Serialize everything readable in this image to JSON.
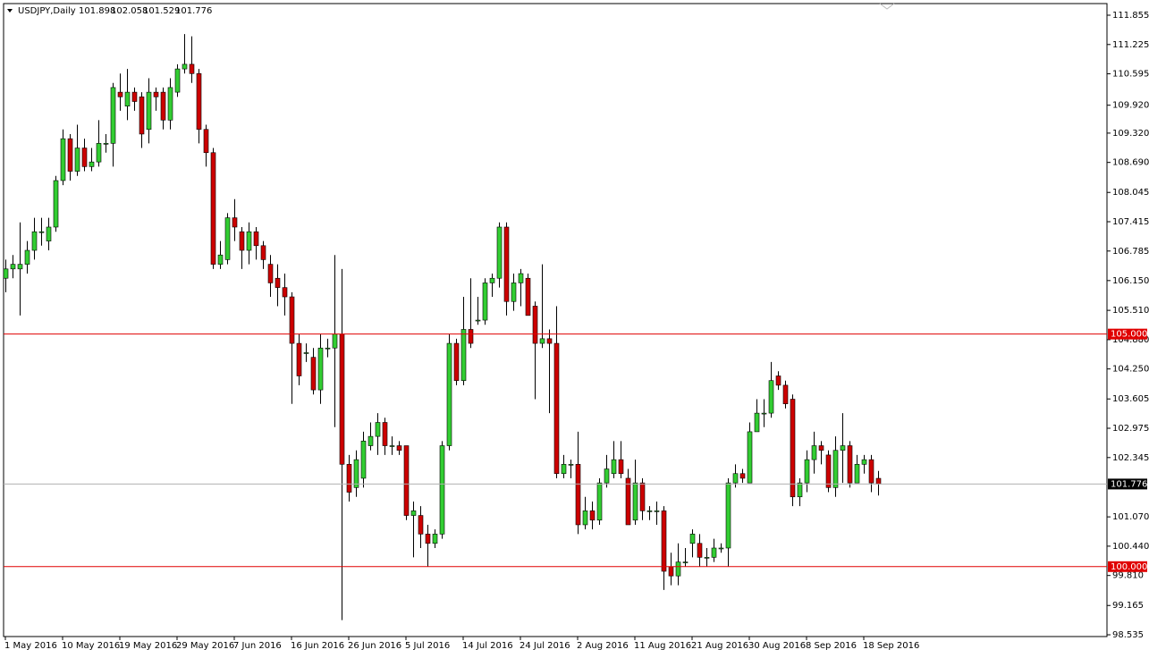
{
  "chart_data": {
    "type": "candlestick",
    "header": {
      "symbol": "USDJPY,Daily",
      "ohlc": [
        101.898,
        102.058,
        101.529,
        101.776
      ]
    },
    "categories": [
      "1 May 2016",
      null,
      null,
      null,
      null,
      null,
      null,
      null,
      "10 May 2016",
      null,
      null,
      null,
      null,
      null,
      null,
      null,
      "19 May 2016",
      null,
      null,
      null,
      null,
      null,
      null,
      null,
      "29 May 2016",
      null,
      null,
      null,
      null,
      null,
      null,
      null,
      "7 Jun 2016",
      null,
      null,
      null,
      null,
      null,
      null,
      null,
      "16 Jun 2016",
      null,
      null,
      null,
      null,
      null,
      null,
      null,
      "26 Jun 2016",
      null,
      null,
      null,
      null,
      null,
      null,
      null,
      "5 Jul 2016",
      null,
      null,
      null,
      null,
      null,
      null,
      null,
      "14 Jul 2016",
      null,
      null,
      null,
      null,
      null,
      null,
      null,
      "24 Jul 2016",
      null,
      null,
      null,
      null,
      null,
      null,
      null,
      "2 Aug 2016",
      null,
      null,
      null,
      null,
      null,
      null,
      null,
      "11 Aug 2016",
      null,
      null,
      null,
      null,
      null,
      null,
      null,
      "21 Aug 2016",
      null,
      null,
      null,
      null,
      null,
      null,
      null,
      "30 Aug 2016",
      null,
      null,
      null,
      null,
      null,
      null,
      null,
      "8 Sep 2016",
      null,
      null,
      null,
      null,
      null,
      null,
      null,
      "18 Sep 2016",
      null,
      null
    ],
    "open": [
      106.2,
      106.4,
      106.4,
      106.5,
      106.8,
      107.2,
      107.0,
      107.3,
      108.3,
      109.2,
      108.5,
      109.0,
      108.6,
      108.7,
      109.1,
      109.1,
      110.2,
      109.9,
      110.2,
      110.1,
      109.4,
      110.2,
      110.2,
      109.6,
      110.2,
      110.7,
      110.8,
      110.6,
      109.4,
      108.9,
      106.5,
      106.6,
      107.5,
      107.2,
      106.8,
      107.2,
      106.9,
      106.5,
      106.2,
      106.0,
      105.8,
      104.8,
      104.6,
      104.5,
      103.8,
      104.7,
      104.7,
      105.0,
      102.2,
      101.7,
      101.9,
      102.6,
      102.8,
      103.1,
      102.6,
      102.6,
      102.6,
      101.1,
      101.1,
      100.7,
      100.5,
      100.7,
      102.6,
      104.8,
      104.0,
      105.1,
      105.3,
      105.3,
      106.1,
      106.2,
      107.3,
      105.7,
      106.1,
      106.2,
      105.6,
      104.8,
      104.9,
      104.8,
      102.0,
      102.2,
      102.2,
      100.9,
      101.2,
      101.0,
      101.8,
      102.0,
      102.3,
      101.9,
      101.0,
      101.8,
      101.2,
      101.2,
      101.2,
      100.0,
      99.8,
      100.1,
      100.5,
      100.5,
      100.2,
      100.2,
      100.4,
      100.4,
      101.8,
      102.0,
      101.8,
      102.9,
      103.3,
      103.3,
      104.1,
      103.9,
      103.6,
      101.5,
      101.8,
      102.3,
      102.6,
      102.4,
      101.7,
      102.5,
      102.6,
      101.8,
      102.2,
      102.3,
      101.898
    ],
    "high": [
      106.6,
      106.7,
      107.4,
      107.0,
      107.5,
      107.5,
      107.5,
      108.4,
      109.4,
      109.3,
      109.5,
      109.2,
      109.0,
      109.6,
      109.3,
      110.4,
      110.6,
      110.7,
      110.3,
      110.2,
      110.5,
      110.3,
      110.3,
      110.5,
      110.8,
      111.45,
      111.4,
      110.7,
      109.5,
      109.0,
      107.0,
      107.6,
      107.9,
      107.3,
      107.4,
      107.3,
      107.0,
      106.7,
      106.5,
      106.3,
      105.9,
      105.0,
      104.8,
      104.7,
      105.0,
      104.9,
      106.7,
      106.4,
      102.4,
      102.5,
      102.9,
      103.1,
      103.3,
      103.2,
      102.8,
      102.7,
      102.6,
      101.4,
      101.3,
      100.9,
      100.8,
      102.7,
      105.0,
      104.9,
      105.8,
      106.2,
      105.8,
      106.2,
      106.3,
      107.4,
      107.4,
      106.3,
      106.4,
      106.3,
      105.7,
      106.5,
      105.1,
      105.6,
      102.4,
      102.3,
      102.9,
      101.5,
      101.4,
      101.9,
      102.4,
      102.7,
      102.7,
      102.1,
      102.3,
      101.9,
      101.3,
      101.4,
      101.3,
      100.3,
      100.5,
      100.4,
      100.8,
      100.7,
      100.4,
      100.6,
      100.5,
      101.9,
      102.2,
      102.1,
      103.1,
      103.6,
      103.6,
      104.4,
      104.2,
      104.0,
      103.7,
      101.9,
      102.5,
      102.9,
      102.7,
      102.5,
      102.8,
      103.3,
      102.7,
      102.4,
      102.4,
      102.4,
      102.058
    ],
    "low": [
      105.9,
      106.2,
      105.4,
      106.3,
      106.6,
      106.9,
      106.8,
      107.2,
      108.2,
      108.3,
      108.4,
      108.5,
      108.5,
      108.6,
      108.9,
      108.6,
      109.8,
      109.6,
      109.8,
      109.0,
      109.1,
      109.8,
      109.4,
      109.4,
      110.1,
      110.6,
      110.4,
      109.1,
      108.6,
      106.4,
      106.4,
      106.5,
      107.0,
      106.4,
      106.5,
      106.6,
      106.4,
      105.8,
      105.6,
      105.4,
      103.5,
      103.9,
      104.4,
      103.7,
      103.5,
      104.5,
      103.0,
      98.85,
      101.4,
      101.5,
      101.7,
      102.5,
      102.4,
      102.4,
      102.4,
      102.4,
      101.0,
      100.2,
      100.4,
      100.0,
      100.4,
      100.6,
      102.5,
      103.9,
      103.9,
      104.7,
      105.2,
      105.2,
      105.8,
      106.0,
      105.4,
      105.5,
      105.6,
      105.4,
      103.6,
      104.7,
      103.3,
      101.9,
      101.9,
      101.9,
      100.7,
      100.8,
      100.8,
      100.9,
      101.7,
      101.9,
      101.9,
      100.9,
      100.9,
      101.0,
      101.0,
      100.9,
      99.5,
      99.6,
      99.6,
      100.0,
      100.2,
      100.0,
      100.0,
      100.1,
      100.3,
      100.0,
      101.7,
      101.8,
      101.8,
      102.9,
      103.0,
      103.2,
      103.8,
      103.4,
      101.3,
      101.3,
      101.6,
      102.0,
      102.2,
      101.6,
      101.5,
      101.8,
      101.7,
      101.8,
      102.0,
      101.6,
      101.529
    ],
    "close": [
      106.4,
      106.5,
      106.5,
      106.8,
      107.2,
      107.2,
      107.3,
      108.3,
      109.2,
      108.5,
      109.0,
      108.6,
      108.7,
      109.1,
      109.1,
      110.3,
      110.1,
      110.2,
      110.0,
      109.3,
      110.2,
      110.1,
      109.6,
      110.3,
      110.7,
      110.8,
      110.6,
      109.4,
      108.9,
      106.5,
      106.7,
      107.5,
      107.3,
      106.8,
      107.2,
      106.9,
      106.6,
      106.1,
      106.0,
      105.8,
      104.8,
      104.1,
      104.6,
      103.8,
      104.7,
      104.7,
      105.0,
      102.2,
      101.6,
      102.3,
      102.7,
      102.8,
      103.1,
      102.6,
      102.6,
      102.5,
      101.1,
      101.2,
      100.7,
      100.5,
      100.7,
      102.6,
      104.8,
      104.0,
      105.1,
      104.8,
      105.3,
      106.1,
      106.2,
      107.3,
      105.7,
      106.1,
      106.3,
      105.4,
      104.8,
      104.9,
      104.8,
      102.0,
      102.2,
      102.2,
      100.9,
      101.2,
      101.0,
      101.8,
      102.1,
      102.3,
      102.0,
      100.9,
      101.8,
      101.2,
      101.2,
      101.2,
      99.9,
      99.8,
      100.1,
      100.1,
      100.7,
      100.2,
      100.2,
      100.4,
      100.4,
      101.8,
      102.0,
      101.9,
      102.9,
      103.3,
      103.3,
      104.0,
      103.9,
      103.5,
      101.5,
      101.8,
      102.3,
      102.6,
      102.5,
      101.7,
      102.5,
      102.6,
      101.8,
      102.2,
      102.3,
      101.8,
      101.776
    ],
    "up_color": "#32cd32",
    "down_color": "#cc0000",
    "ylim": [
      98.497,
      112.105
    ],
    "yticks": [
      111.855,
      111.225,
      110.595,
      {
        "value": 109.92,
        "label": "109.920"
      },
      {
        "value": 109.32,
        "label": "109.320"
      },
      {
        "value": 108.69,
        "label": "108.690"
      },
      108.045,
      107.415,
      106.785,
      {
        "value": 106.15,
        "label": "106.150"
      },
      {
        "value": 105.51,
        "label": "105.510"
      },
      {
        "value": 104.88,
        "label": "104.880"
      },
      {
        "value": 104.25,
        "label": "104.250"
      },
      103.605,
      102.975,
      102.345,
      {
        "value": 101.07,
        "label": "101.070"
      },
      {
        "value": 100.44,
        "label": "100.440"
      },
      {
        "value": 99.81,
        "label": "99.810"
      },
      99.165,
      98.535
    ],
    "hlines": [
      {
        "value": 105,
        "label": "105.000",
        "color": "#e00000"
      },
      {
        "value": 100,
        "label": "100.000",
        "color": "#e00000"
      },
      {
        "value": 101.776,
        "label": "101.776",
        "color": "#b0b0b0"
      }
    ],
    "grid": false
  }
}
